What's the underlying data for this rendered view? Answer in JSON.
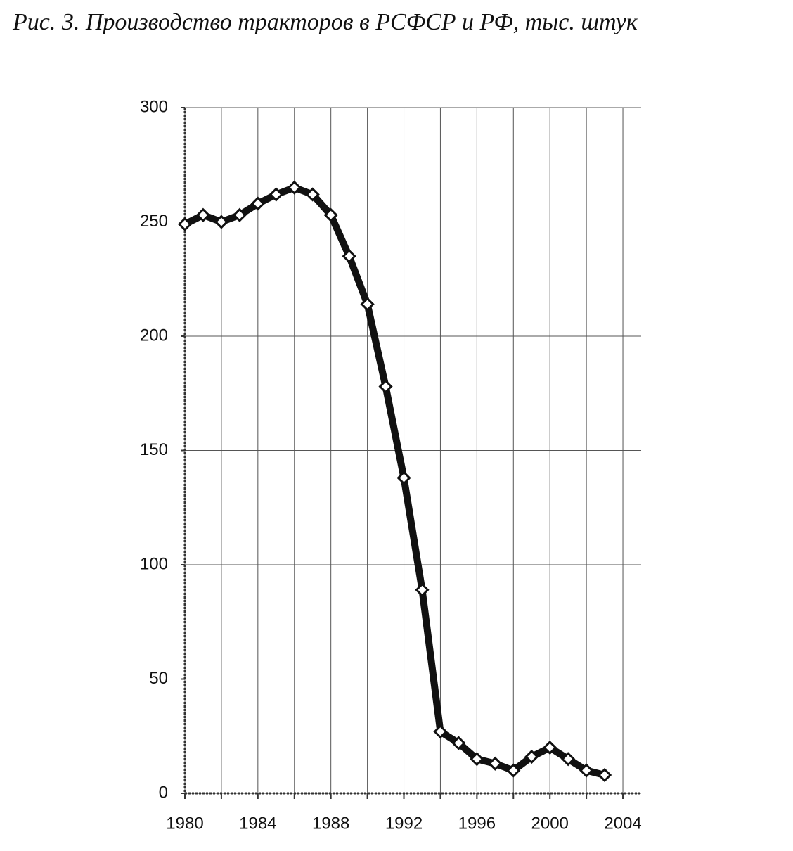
{
  "chart_data": {
    "type": "line",
    "title": "Рис. 3. Производство тракторов в РСФСР и РФ, тыс. штук",
    "x": [
      1980,
      1981,
      1982,
      1983,
      1984,
      1985,
      1986,
      1987,
      1988,
      1989,
      1990,
      1991,
      1992,
      1993,
      1994,
      1995,
      1996,
      1997,
      1998,
      1999,
      2000,
      2001,
      2002,
      2003
    ],
    "series": [
      {
        "color": "#111111",
        "values": [
          249,
          253,
          250,
          253,
          258,
          262,
          265,
          262,
          253,
          235,
          214,
          178,
          138,
          89,
          27,
          22,
          15,
          13,
          10,
          16,
          20,
          15,
          10,
          8
        ]
      }
    ],
    "xlim": [
      1980,
      2005
    ],
    "xticks": [
      1980,
      1984,
      1988,
      1992,
      1996,
      2000,
      2004
    ],
    "xminorticks": [
      1982,
      1986,
      1990,
      1994,
      1998,
      2002
    ],
    "ylim": [
      0,
      300
    ],
    "yticks": [
      0,
      50,
      100,
      150,
      200,
      250,
      300
    ],
    "grid": true
  }
}
